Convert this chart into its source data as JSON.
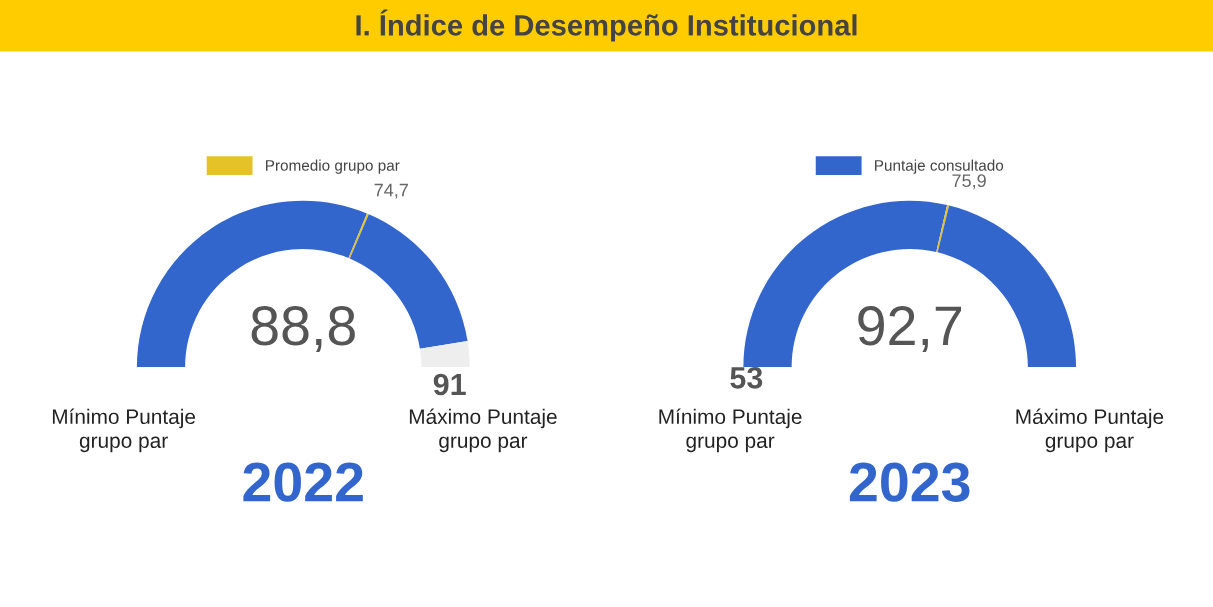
{
  "chart_data": [
    {
      "type": "donut",
      "title": "I. Índice de Desempeño Institucional",
      "xlabel": "2022",
      "categories": [
        null,
        "Promedio grupo par",
        null,
        null
      ],
      "values": [
        62.5,
        0.4,
        32.1,
        5.0
      ],
      "colors": [
        "#3366cc",
        "#e6c229",
        "#3366cc",
        "#eeeeee"
      ],
      "legend": "top",
      "annotations": [
        "88,8",
        "74,7",
        null,
        "Mínimo Puntaje\ngrupo par",
        "91",
        "Máximo Puntaje\ngrupo par"
      ]
    },
    {
      "type": "donut",
      "xlabel": "2023",
      "categories": [
        "Puntaje consultado",
        null,
        null
      ],
      "values": [
        57.2,
        0.4,
        42.4
      ],
      "colors": [
        "#3366cc",
        "#e6c229",
        "#3366cc"
      ],
      "legend": "top",
      "annotations": [
        "92,7",
        "75,9",
        "53",
        "Mínimo Puntaje\ngrupo par",
        null,
        "Máximo Puntaje\ngrupo par"
      ]
    }
  ]
}
